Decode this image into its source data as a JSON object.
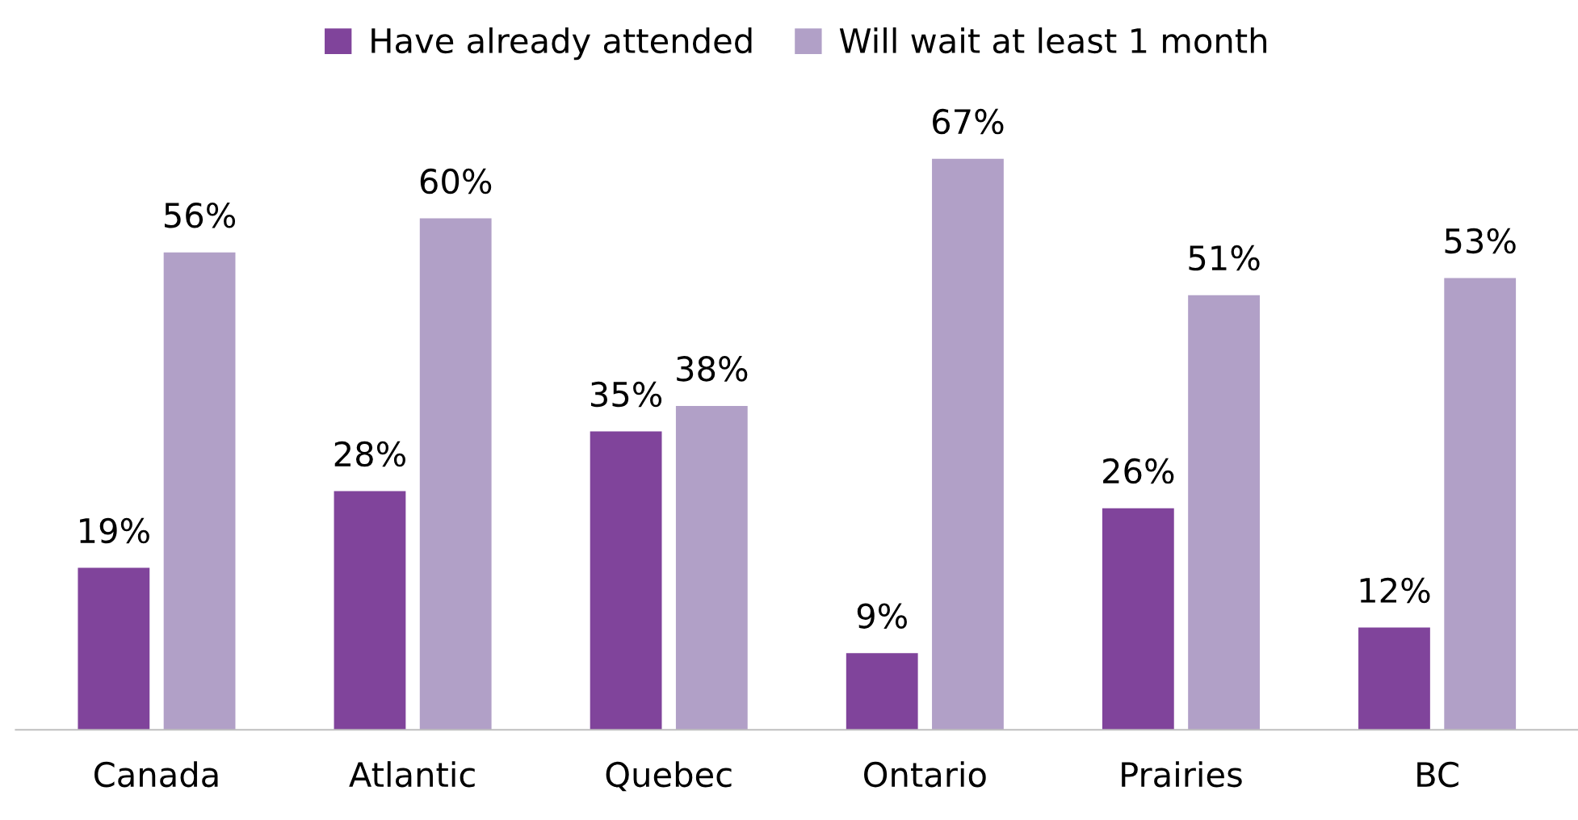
{
  "chart_data": {
    "type": "bar",
    "categories": [
      "Canada",
      "Atlantic",
      "Quebec",
      "Ontario",
      "Prairies",
      "BC"
    ],
    "series": [
      {
        "name": "Have already attended",
        "color": "#80449b",
        "values": [
          19,
          28,
          35,
          9,
          26,
          12
        ],
        "value_labels": [
          "19%",
          "28%",
          "35%",
          "9%",
          "26%",
          "12%"
        ]
      },
      {
        "name": "Will wait at least 1 month",
        "color": "#b1a0c7",
        "values": [
          56,
          60,
          38,
          67,
          51,
          53
        ],
        "value_labels": [
          "56%",
          "60%",
          "38%",
          "67%",
          "51%",
          "53%"
        ]
      }
    ],
    "legend": "top"
  }
}
